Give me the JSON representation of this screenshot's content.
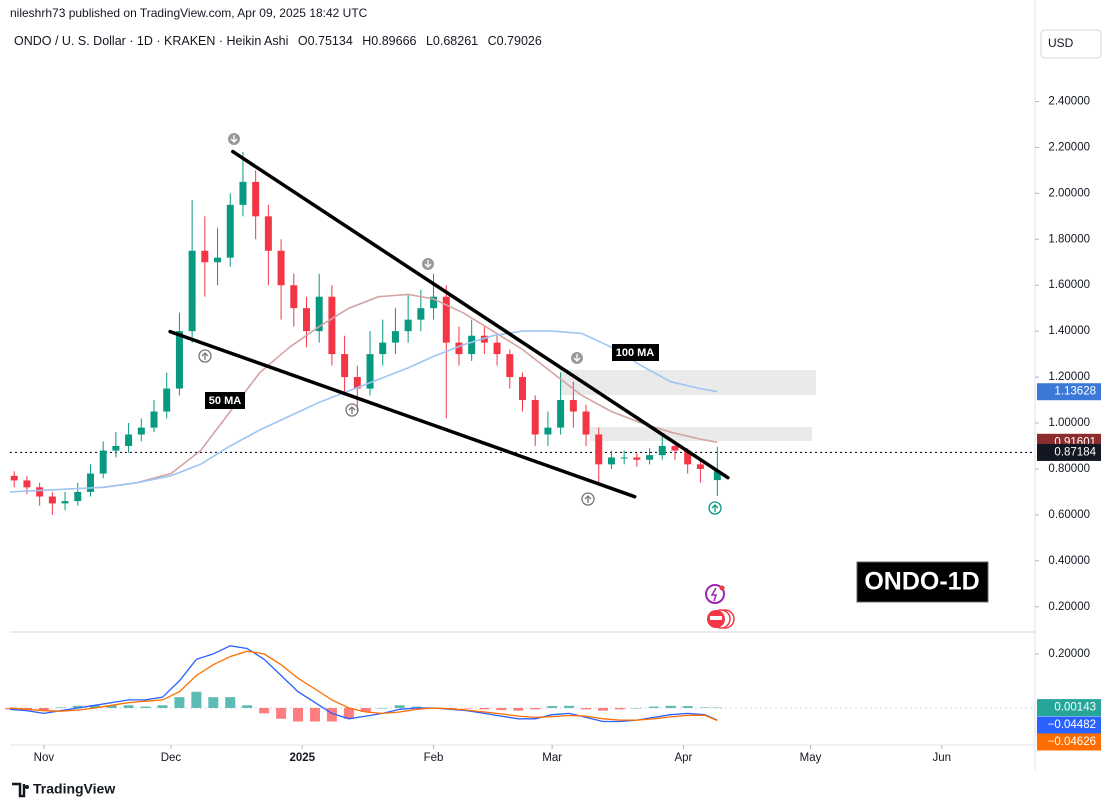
{
  "header": {
    "publisher": "nileshrh73 published on TradingView.com, Apr 09, 2025 18:42 UTC",
    "symbol": "ONDO / U. S. Dollar · 1D · KRAKEN · Heikin Ashi",
    "ohlc_labels": [
      "O",
      "H",
      "L",
      "C"
    ],
    "ohlc": [
      0.75134,
      0.89666,
      0.68261,
      0.79026
    ]
  },
  "currency_button": "USD",
  "chart_tag": "ONDO-1D",
  "footer": {
    "brand": "TradingView"
  },
  "chart_data": [
    {
      "type": "candlestick",
      "xlim": [
        -8,
        234
      ],
      "xticks": [
        {
          "value": 0,
          "label": "Nov"
        },
        {
          "value": 30,
          "label": "Dec"
        },
        {
          "value": 61,
          "label": "2025"
        },
        {
          "value": 92,
          "label": "Feb"
        },
        {
          "value": 120,
          "label": "Mar"
        },
        {
          "value": 151,
          "label": "Apr"
        },
        {
          "value": 181,
          "label": "May"
        },
        {
          "value": 212,
          "label": "Jun"
        }
      ],
      "ylim": [
        0.09,
        2.72
      ],
      "yticks": [
        {
          "value": 0.2,
          "label": "0.20000"
        },
        {
          "value": 0.4,
          "label": "0.40000"
        },
        {
          "value": 0.6,
          "label": "0.60000"
        },
        {
          "value": 0.8,
          "label": "0.80000"
        },
        {
          "value": 1.0,
          "label": "1.00000"
        },
        {
          "value": 1.2,
          "label": "1.20000"
        },
        {
          "value": 1.4,
          "label": "1.40000"
        },
        {
          "value": 1.6,
          "label": "1.60000"
        },
        {
          "value": 1.8,
          "label": "1.80000"
        },
        {
          "value": 2.0,
          "label": "2.00000"
        },
        {
          "value": 2.2,
          "label": "2.20000"
        },
        {
          "value": 2.4,
          "label": "2.40000"
        }
      ],
      "up_color": "#089981",
      "down_color": "#f23645",
      "candles": {
        "x": [
          -7,
          -4,
          -1,
          2,
          5,
          8,
          11,
          14,
          17,
          20,
          23,
          26,
          29,
          32,
          35,
          38,
          41,
          44,
          47,
          50,
          53,
          56,
          59,
          62,
          65,
          68,
          71,
          74,
          77,
          80,
          83,
          86,
          89,
          92,
          95,
          98,
          101,
          104,
          107,
          110,
          113,
          116,
          119,
          122,
          125,
          128,
          131,
          134,
          137,
          140,
          143,
          146,
          149,
          152,
          155,
          159
        ],
        "open": [
          0.77,
          0.75,
          0.72,
          0.68,
          0.65,
          0.66,
          0.7,
          0.78,
          0.88,
          0.9,
          0.95,
          0.98,
          1.05,
          1.15,
          1.4,
          1.75,
          1.7,
          1.72,
          1.95,
          2.05,
          1.9,
          1.75,
          1.6,
          1.5,
          1.4,
          1.55,
          1.3,
          1.2,
          1.15,
          1.3,
          1.35,
          1.4,
          1.45,
          1.5,
          1.55,
          1.35,
          1.3,
          1.38,
          1.35,
          1.3,
          1.2,
          1.1,
          0.95,
          0.98,
          1.1,
          1.05,
          0.95,
          0.82,
          0.85,
          0.85,
          0.84,
          0.86,
          0.9,
          0.88,
          0.82,
          0.75134
        ],
        "high": [
          0.79,
          0.77,
          0.74,
          0.7,
          0.7,
          0.74,
          0.82,
          0.92,
          0.96,
          1.0,
          1.02,
          1.1,
          1.22,
          1.48,
          1.97,
          1.9,
          1.85,
          2.0,
          2.18,
          2.1,
          1.95,
          1.8,
          1.65,
          1.55,
          1.65,
          1.6,
          1.38,
          1.25,
          1.4,
          1.45,
          1.5,
          1.56,
          1.58,
          1.65,
          1.6,
          1.42,
          1.45,
          1.42,
          1.38,
          1.32,
          1.22,
          1.12,
          1.05,
          1.22,
          1.18,
          1.08,
          0.98,
          0.88,
          0.88,
          0.87,
          0.89,
          0.95,
          0.92,
          0.89,
          0.84,
          0.89666
        ],
        "low": [
          0.72,
          0.69,
          0.64,
          0.6,
          0.62,
          0.64,
          0.68,
          0.76,
          0.85,
          0.87,
          0.92,
          0.96,
          1.02,
          1.12,
          1.35,
          1.55,
          1.6,
          1.68,
          1.9,
          1.8,
          1.6,
          1.45,
          1.42,
          1.33,
          1.35,
          1.25,
          1.12,
          1.05,
          1.12,
          1.25,
          1.3,
          1.35,
          1.4,
          1.45,
          1.02,
          1.25,
          1.27,
          1.3,
          1.25,
          1.15,
          1.05,
          0.9,
          0.9,
          0.95,
          0.98,
          0.9,
          0.73,
          0.8,
          0.82,
          0.81,
          0.82,
          0.84,
          0.84,
          0.78,
          0.74,
          0.68261
        ],
        "close": [
          0.75,
          0.72,
          0.68,
          0.65,
          0.66,
          0.7,
          0.78,
          0.88,
          0.9,
          0.95,
          0.98,
          1.05,
          1.15,
          1.4,
          1.75,
          1.7,
          1.72,
          1.95,
          2.05,
          1.9,
          1.75,
          1.6,
          1.5,
          1.4,
          1.55,
          1.3,
          1.2,
          1.15,
          1.3,
          1.35,
          1.4,
          1.45,
          1.5,
          1.55,
          1.35,
          1.3,
          1.38,
          1.35,
          1.3,
          1.2,
          1.1,
          0.95,
          0.98,
          1.1,
          1.05,
          0.95,
          0.82,
          0.85,
          0.85,
          0.84,
          0.86,
          0.9,
          0.88,
          0.82,
          0.8,
          0.79026
        ]
      },
      "series": [
        {
          "name": "50 MA",
          "color": "#d4a3a3",
          "x": [
            14,
            22,
            30,
            37,
            44,
            51,
            58,
            65,
            72,
            79,
            86,
            92,
            99,
            106,
            113,
            120,
            127,
            134,
            141,
            148,
            155,
            159
          ],
          "values": [
            0.72,
            0.74,
            0.78,
            0.88,
            1.05,
            1.22,
            1.33,
            1.42,
            1.5,
            1.55,
            1.56,
            1.54,
            1.48,
            1.4,
            1.32,
            1.22,
            1.12,
            1.05,
            1.0,
            0.96,
            0.93,
            0.91601
          ],
          "label_color": "#8c2c2c"
        },
        {
          "name": "100 MA",
          "color": "#9ec5f4",
          "x": [
            -8,
            14,
            22,
            30,
            37,
            44,
            51,
            58,
            65,
            72,
            79,
            86,
            92,
            99,
            106,
            113,
            120,
            127,
            134,
            141,
            148,
            155,
            159
          ],
          "values": [
            0.7,
            0.72,
            0.74,
            0.77,
            0.82,
            0.9,
            0.97,
            1.03,
            1.09,
            1.14,
            1.19,
            1.24,
            1.29,
            1.34,
            1.38,
            1.4,
            1.4,
            1.39,
            1.33,
            1.25,
            1.18,
            1.15,
            1.13628
          ],
          "label_color": "#3c78d8"
        }
      ],
      "price_line": 0.87184,
      "trendlines": [
        {
          "x": [
            44.6,
            161.5
          ],
          "values": [
            2.182,
            0.762
          ]
        },
        {
          "x": [
            29.8,
            139.5
          ],
          "values": [
            1.398,
            0.679
          ]
        }
      ]
    },
    {
      "type": "macd",
      "ylim": [
        -0.137,
        0.281
      ],
      "yticks": [
        {
          "value": 0.2,
          "label": "0.20000"
        }
      ],
      "x": [
        -8,
        -4,
        0,
        4,
        8,
        12,
        16,
        20,
        24,
        28,
        32,
        36,
        40,
        44,
        48,
        52,
        56,
        60,
        64,
        68,
        72,
        76,
        80,
        84,
        88,
        92,
        96,
        100,
        104,
        108,
        112,
        116,
        120,
        124,
        128,
        132,
        136,
        140,
        144,
        148,
        152,
        156,
        159
      ],
      "histogram": {
        "up_color": "#26a69a",
        "down_color": "#ff5252",
        "label_color": "#26a69a",
        "values": [
          -0.005,
          -0.005,
          -0.01,
          0.002,
          0.008,
          0.01,
          0.01,
          0.01,
          0.005,
          0.01,
          0.04,
          0.06,
          0.04,
          0.04,
          0.01,
          -0.02,
          -0.04,
          -0.05,
          -0.05,
          -0.05,
          -0.04,
          -0.015,
          0.0,
          0.01,
          0.005,
          0.0,
          -0.002,
          -0.002,
          -0.005,
          -0.008,
          -0.01,
          -0.005,
          0.007,
          0.008,
          -0.005,
          -0.01,
          -0.005,
          0.0,
          0.005,
          0.008,
          0.007,
          0.002,
          0.00143
        ]
      },
      "series": [
        {
          "color": "#2962ff",
          "last_label": "−0.04482",
          "values": [
            -0.005,
            -0.01,
            -0.02,
            -0.01,
            0.0,
            0.01,
            0.02,
            0.03,
            0.03,
            0.04,
            0.1,
            0.18,
            0.2,
            0.23,
            0.22,
            0.18,
            0.12,
            0.06,
            0.02,
            -0.02,
            -0.04,
            -0.03,
            -0.02,
            -0.005,
            0.0,
            0.0,
            -0.005,
            -0.01,
            -0.02,
            -0.03,
            -0.04,
            -0.04,
            -0.025,
            -0.02,
            -0.035,
            -0.05,
            -0.05,
            -0.045,
            -0.035,
            -0.025,
            -0.02,
            -0.025,
            -0.04482
          ]
        },
        {
          "color": "#ff6d00",
          "last_label": "−0.04626",
          "values": [
            0.0,
            -0.005,
            -0.01,
            -0.012,
            -0.008,
            0.0,
            0.01,
            0.02,
            0.025,
            0.03,
            0.06,
            0.12,
            0.16,
            0.19,
            0.21,
            0.2,
            0.16,
            0.11,
            0.07,
            0.03,
            0.0,
            -0.015,
            -0.02,
            -0.015,
            -0.005,
            0.0,
            -0.003,
            -0.008,
            -0.015,
            -0.022,
            -0.03,
            -0.035,
            -0.032,
            -0.028,
            -0.03,
            -0.04,
            -0.045,
            -0.045,
            -0.04,
            -0.033,
            -0.027,
            -0.027,
            -0.04626
          ]
        }
      ]
    }
  ]
}
